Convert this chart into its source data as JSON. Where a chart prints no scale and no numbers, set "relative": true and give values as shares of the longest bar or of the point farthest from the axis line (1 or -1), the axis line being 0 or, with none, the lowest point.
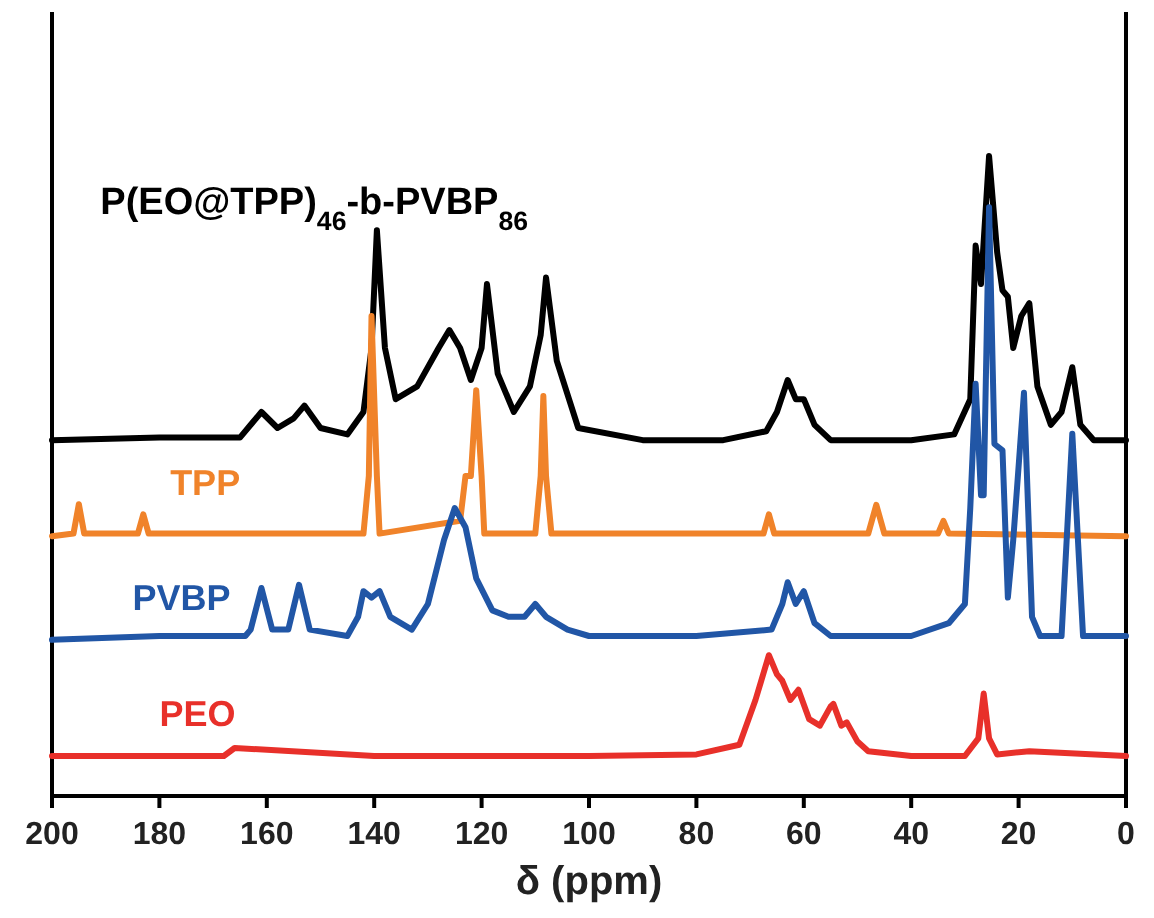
{
  "chart_data": {
    "type": "line",
    "relative": true,
    "xlabel": "δ (ppm)",
    "xlim": [
      200,
      0
    ],
    "xticks": [
      200,
      180,
      160,
      140,
      120,
      100,
      80,
      60,
      40,
      20,
      0
    ],
    "legend": false,
    "series": [
      {
        "name": "P(EO@TPP)$_{46}$-b-PVBP$_{86}$",
        "color": "#000000",
        "x": [
          200,
          180,
          165,
          163,
          161,
          158,
          155,
          153,
          150,
          145,
          142,
          140.5,
          139.5,
          138,
          136,
          132,
          128,
          126,
          124,
          122,
          120,
          119,
          117,
          114,
          111,
          109,
          108,
          106,
          102,
          90,
          75,
          67,
          65,
          63,
          61.5,
          60,
          58,
          55,
          40,
          32,
          29,
          28,
          27,
          25.5,
          24,
          23,
          22,
          21,
          19.5,
          18,
          16.5,
          14,
          12,
          10,
          8.5,
          6,
          0
        ],
        "values": [
          0.556,
          0.56,
          0.56,
          0.58,
          0.6,
          0.575,
          0.59,
          0.61,
          0.575,
          0.565,
          0.6,
          0.7,
          0.884,
          0.7,
          0.62,
          0.64,
          0.7,
          0.728,
          0.7,
          0.65,
          0.7,
          0.8,
          0.66,
          0.6,
          0.64,
          0.72,
          0.81,
          0.68,
          0.575,
          0.556,
          0.556,
          0.57,
          0.6,
          0.65,
          0.62,
          0.62,
          0.58,
          0.556,
          0.556,
          0.565,
          0.62,
          0.86,
          0.8,
          1.0,
          0.85,
          0.79,
          0.78,
          0.7,
          0.75,
          0.77,
          0.64,
          0.58,
          0.6,
          0.67,
          0.58,
          0.556,
          0.556
        ]
      },
      {
        "name": "TPP",
        "color": "#f0832a",
        "x": [
          200,
          196,
          195,
          194,
          184,
          183,
          182,
          142,
          141,
          140.5,
          139.5,
          139,
          124,
          123,
          122,
          121,
          120,
          119.5,
          110,
          109,
          108.5,
          108,
          107,
          67.5,
          66.5,
          65.5,
          48,
          46.5,
          45,
          35,
          34,
          33,
          0
        ],
        "values": [
          0.406,
          0.41,
          0.456,
          0.41,
          0.41,
          0.44,
          0.41,
          0.41,
          0.5,
          0.75,
          0.5,
          0.41,
          0.43,
          0.5,
          0.5,
          0.634,
          0.5,
          0.41,
          0.41,
          0.5,
          0.625,
          0.5,
          0.41,
          0.41,
          0.44,
          0.41,
          0.41,
          0.455,
          0.41,
          0.41,
          0.43,
          0.41,
          0.406
        ]
      },
      {
        "name": "PVBP",
        "color": "#2156a6",
        "x": [
          200,
          180,
          164,
          163,
          161,
          159,
          156,
          154,
          152,
          145,
          143,
          142,
          140.5,
          139,
          137,
          133,
          130,
          127,
          125,
          123,
          121,
          118,
          115,
          112,
          110,
          108,
          104,
          100,
          80,
          66,
          64,
          63,
          61.5,
          60,
          58,
          55,
          40,
          33,
          30,
          29,
          28,
          27,
          26.5,
          25.5,
          24.5,
          23,
          22,
          21,
          19,
          17.5,
          16,
          12,
          10,
          8,
          0
        ],
        "values": [
          0.244,
          0.25,
          0.25,
          0.26,
          0.325,
          0.26,
          0.26,
          0.33,
          0.26,
          0.25,
          0.28,
          0.32,
          0.31,
          0.32,
          0.28,
          0.26,
          0.3,
          0.4,
          0.45,
          0.42,
          0.34,
          0.29,
          0.28,
          0.28,
          0.3,
          0.28,
          0.26,
          0.25,
          0.25,
          0.26,
          0.3,
          0.334,
          0.3,
          0.32,
          0.27,
          0.25,
          0.25,
          0.27,
          0.3,
          0.45,
          0.644,
          0.47,
          0.47,
          0.92,
          0.55,
          0.54,
          0.31,
          0.4,
          0.63,
          0.28,
          0.25,
          0.25,
          0.566,
          0.25,
          0.25
        ]
      },
      {
        "name": "PEO",
        "color": "#e8302a",
        "x": [
          200,
          168,
          166,
          140,
          100,
          80,
          72,
          69,
          66.5,
          65,
          64,
          62.5,
          61,
          59,
          57,
          55,
          54.5,
          53,
          52,
          50,
          48,
          40,
          30,
          27.5,
          26.5,
          25.5,
          24,
          18,
          0
        ],
        "values": [
          0.0625,
          0.0625,
          0.075,
          0.0625,
          0.0625,
          0.065,
          0.08,
          0.15,
          0.22,
          0.19,
          0.18,
          0.15,
          0.166,
          0.12,
          0.11,
          0.14,
          0.144,
          0.11,
          0.115,
          0.085,
          0.07,
          0.0625,
          0.0625,
          0.09,
          0.16,
          0.09,
          0.065,
          0.07,
          0.0625
        ]
      }
    ]
  }
}
